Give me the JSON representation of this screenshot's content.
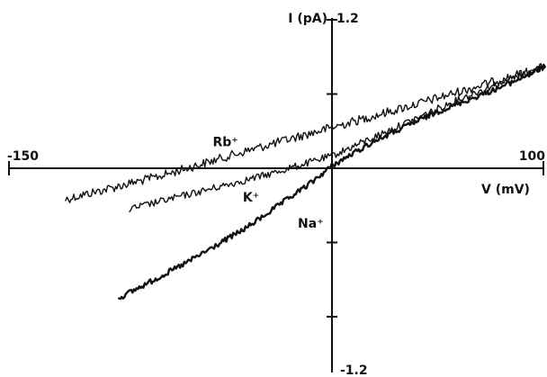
{
  "chart_data": {
    "type": "line",
    "title": "",
    "xlabel": "V (mV)",
    "ylabel": "I (pA)",
    "xlim": [
      -150,
      100
    ],
    "ylim": [
      -1.2,
      1.2
    ],
    "x_tick_labels": [
      "-150",
      "100"
    ],
    "y_tick_labels": [
      "1.2",
      "-1.2"
    ],
    "y_ticks": [
      -1.2,
      -0.6,
      0,
      0.6,
      1.2
    ],
    "grid": false,
    "legend": "none",
    "series": [
      {
        "name": "Rb⁺",
        "label_pos": [
          -50,
          0.18
        ],
        "x": [
          -125,
          -80,
          -40,
          0,
          40,
          80,
          100
        ],
        "y": [
          -0.25,
          -0.06,
          0.14,
          0.33,
          0.52,
          0.72,
          0.82
        ]
      },
      {
        "name": "K⁺",
        "label_pos": [
          -38,
          -0.27
        ],
        "x": [
          -95,
          -60,
          -30,
          0,
          30,
          60,
          80,
          100
        ],
        "y": [
          -0.33,
          -0.18,
          -0.05,
          0.1,
          0.33,
          0.56,
          0.7,
          0.82
        ]
      },
      {
        "name": "Na⁺",
        "label_pos": [
          -10,
          -0.48
        ],
        "x": [
          -100,
          -70,
          -40,
          -10,
          0,
          20,
          50,
          80,
          100
        ],
        "y": [
          -1.05,
          -0.78,
          -0.48,
          -0.12,
          0.02,
          0.22,
          0.46,
          0.66,
          0.82
        ]
      }
    ]
  }
}
